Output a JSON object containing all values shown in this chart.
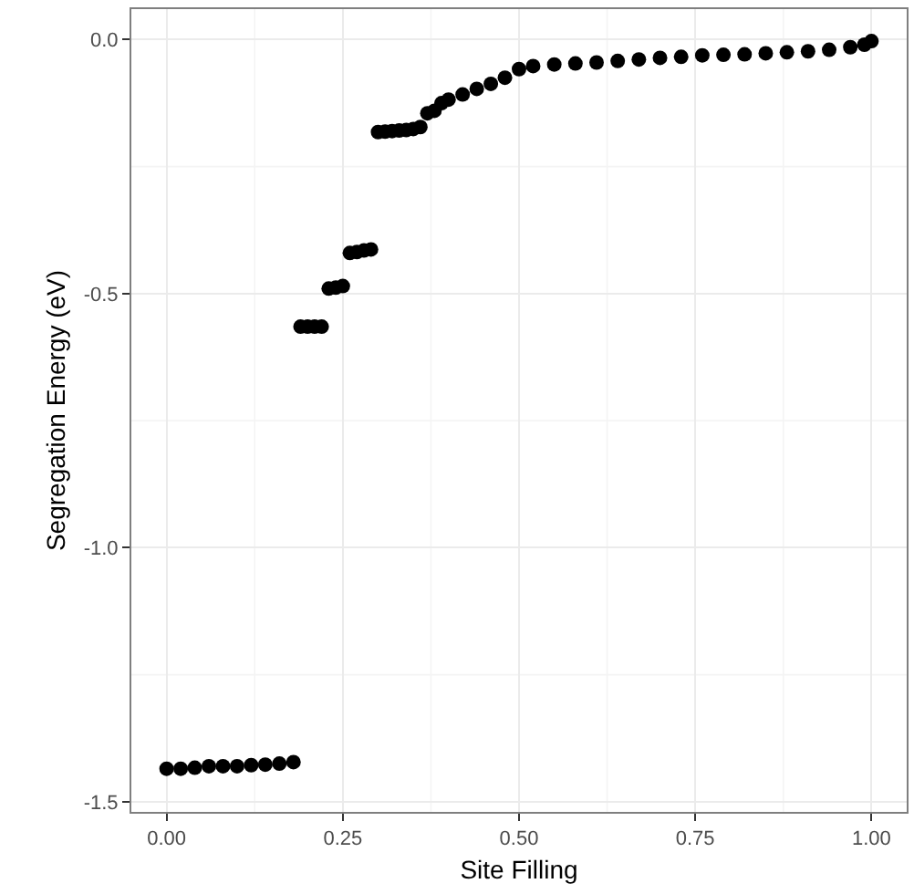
{
  "chart_data": {
    "type": "scatter",
    "xlabel": "Site Filling",
    "ylabel": "Segregation Energy (eV)",
    "x": [
      0.0,
      0.02,
      0.04,
      0.06,
      0.08,
      0.1,
      0.12,
      0.14,
      0.16,
      0.18,
      0.19,
      0.2,
      0.21,
      0.22,
      0.23,
      0.24,
      0.25,
      0.26,
      0.27,
      0.28,
      0.29,
      0.3,
      0.31,
      0.32,
      0.33,
      0.34,
      0.35,
      0.36,
      0.37,
      0.38,
      0.39,
      0.4,
      0.42,
      0.44,
      0.46,
      0.48,
      0.5,
      0.52,
      0.55,
      0.58,
      0.61,
      0.64,
      0.67,
      0.7,
      0.73,
      0.76,
      0.79,
      0.82,
      0.85,
      0.88,
      0.91,
      0.94,
      0.97,
      0.99,
      1.0
    ],
    "series": [
      {
        "color": "#000000",
        "values": [
          -1.435,
          -1.435,
          -1.433,
          -1.43,
          -1.43,
          -1.43,
          -1.428,
          -1.427,
          -1.425,
          -1.422,
          -0.565,
          -0.565,
          -0.565,
          -0.565,
          -0.49,
          -0.488,
          -0.485,
          -0.42,
          -0.418,
          -0.415,
          -0.413,
          -0.182,
          -0.181,
          -0.18,
          -0.179,
          -0.178,
          -0.176,
          -0.172,
          -0.145,
          -0.14,
          -0.125,
          -0.118,
          -0.108,
          -0.097,
          -0.087,
          -0.075,
          -0.058,
          -0.052,
          -0.049,
          -0.047,
          -0.045,
          -0.042,
          -0.039,
          -0.036,
          -0.034,
          -0.031,
          -0.03,
          -0.029,
          -0.027,
          -0.025,
          -0.023,
          -0.02,
          -0.015,
          -0.01,
          -0.003
        ]
      }
    ],
    "xlim": [
      -0.05,
      1.05
    ],
    "xticks": [
      {
        "value": 0,
        "label": "0.00"
      },
      0.25,
      {
        "value": 0.5,
        "label": "0.50"
      },
      0.75,
      {
        "value": 1,
        "label": "1.00"
      }
    ],
    "ylim": [
      -1.52,
      0.06
    ],
    "yticks": [
      -1.5,
      {
        "value": -1,
        "label": "-1.0"
      },
      -0.5,
      {
        "value": 0,
        "label": "0.0"
      }
    ],
    "grid": true,
    "marker": "circle"
  }
}
